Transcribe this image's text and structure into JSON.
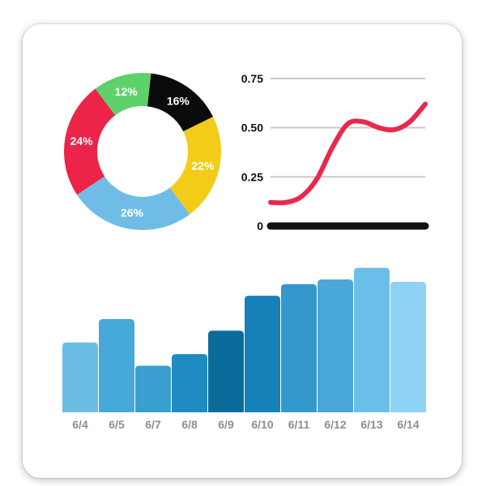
{
  "chart_data": [
    {
      "type": "pie",
      "variant": "donut",
      "slices": [
        {
          "label": "12%",
          "value": 12,
          "color": "#5fd16a",
          "label_color": "#ffffff"
        },
        {
          "label": "16%",
          "value": 16,
          "color": "#0b0b0b",
          "label_color": "#ffffff"
        },
        {
          "label": "22%",
          "value": 22,
          "color": "#f3cc1a",
          "label_color": "#ffffff"
        },
        {
          "label": "26%",
          "value": 26,
          "color": "#6fbde6",
          "label_color": "#ffffff"
        },
        {
          "label": "24%",
          "value": 24,
          "color": "#ec2449",
          "label_color": "#ffffff"
        }
      ]
    },
    {
      "type": "line",
      "x": [
        0,
        1,
        2,
        3,
        4,
        5,
        6,
        7,
        8,
        9,
        10
      ],
      "series": [
        {
          "values": [
            0.12,
            0.12,
            0.15,
            0.24,
            0.4,
            0.52,
            0.53,
            0.5,
            0.49,
            0.53,
            0.62
          ],
          "color": "#e8294c"
        }
      ],
      "yticks": [
        "0",
        "0.25",
        "0.50",
        "0.75"
      ],
      "ytick_values": [
        0,
        0.25,
        0.5,
        0.75
      ],
      "ylim": [
        0,
        0.75
      ],
      "grid": true,
      "baseline_color": "#111111"
    },
    {
      "type": "bar",
      "categories": [
        "6/4",
        "6/5",
        "6/7",
        "6/8",
        "6/9",
        "6/10",
        "6/11",
        "6/12",
        "6/13",
        "6/14"
      ],
      "values": [
        30,
        40,
        20,
        25,
        35,
        50,
        55,
        57,
        62,
        56
      ],
      "colors": [
        "#6cbde5",
        "#46a9d9",
        "#3a9fd0",
        "#1e8bc3",
        "#0b6c9c",
        "#1680b8",
        "#3399cc",
        "#4aa8d8",
        "#6abfe8",
        "#8fd3f4"
      ],
      "ylim": [
        0,
        65
      ]
    }
  ]
}
